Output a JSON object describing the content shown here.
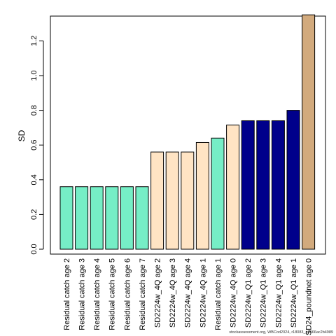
{
  "chart_data": {
    "type": "bar",
    "title": "",
    "xlabel": "",
    "ylabel": "SD",
    "ylim": [
      0,
      1.35
    ],
    "yticks": [
      "0.0",
      "0.2",
      "0.4",
      "0.6",
      "0.8",
      "1.0",
      "1.2"
    ],
    "grid": false,
    "categories": [
      "Residual catch age 2",
      "Residual catch age 3",
      "Residual catch age 4",
      "Residual catch age 5",
      "Residual catch age 6",
      "Residual catch age 7",
      "SD2224w_4Q age 2",
      "SD2224w_4Q age 3",
      "SD2224w_4Q age 4",
      "SD2224w_4Q age 1",
      "Residual catch age 1",
      "SD2224w_4Q age 0",
      "SD2224w_Q1 age 2",
      "SD2224w_Q1 age 3",
      "SD2224w_Q1 age 4",
      "SD2224w_Q1 age 1",
      "SD24_poundnet age 0"
    ],
    "values": [
      0.36,
      0.36,
      0.36,
      0.36,
      0.36,
      0.36,
      0.56,
      0.56,
      0.56,
      0.615,
      0.64,
      0.715,
      0.74,
      0.74,
      0.74,
      0.8,
      1.35
    ],
    "colors": [
      "#76eec6",
      "#76eec6",
      "#76eec6",
      "#76eec6",
      "#76eec6",
      "#76eec6",
      "#ffe4c4",
      "#ffe4c4",
      "#ffe4c4",
      "#ffe4c4",
      "#76eec6",
      "#ffe4c4",
      "#00008b",
      "#00008b",
      "#00008b",
      "#00008b",
      "#d2aa7d"
    ]
  },
  "footer": {
    "note": "stockassessment.org, WBCod2024, r18083_g0066ac2b4989"
  }
}
